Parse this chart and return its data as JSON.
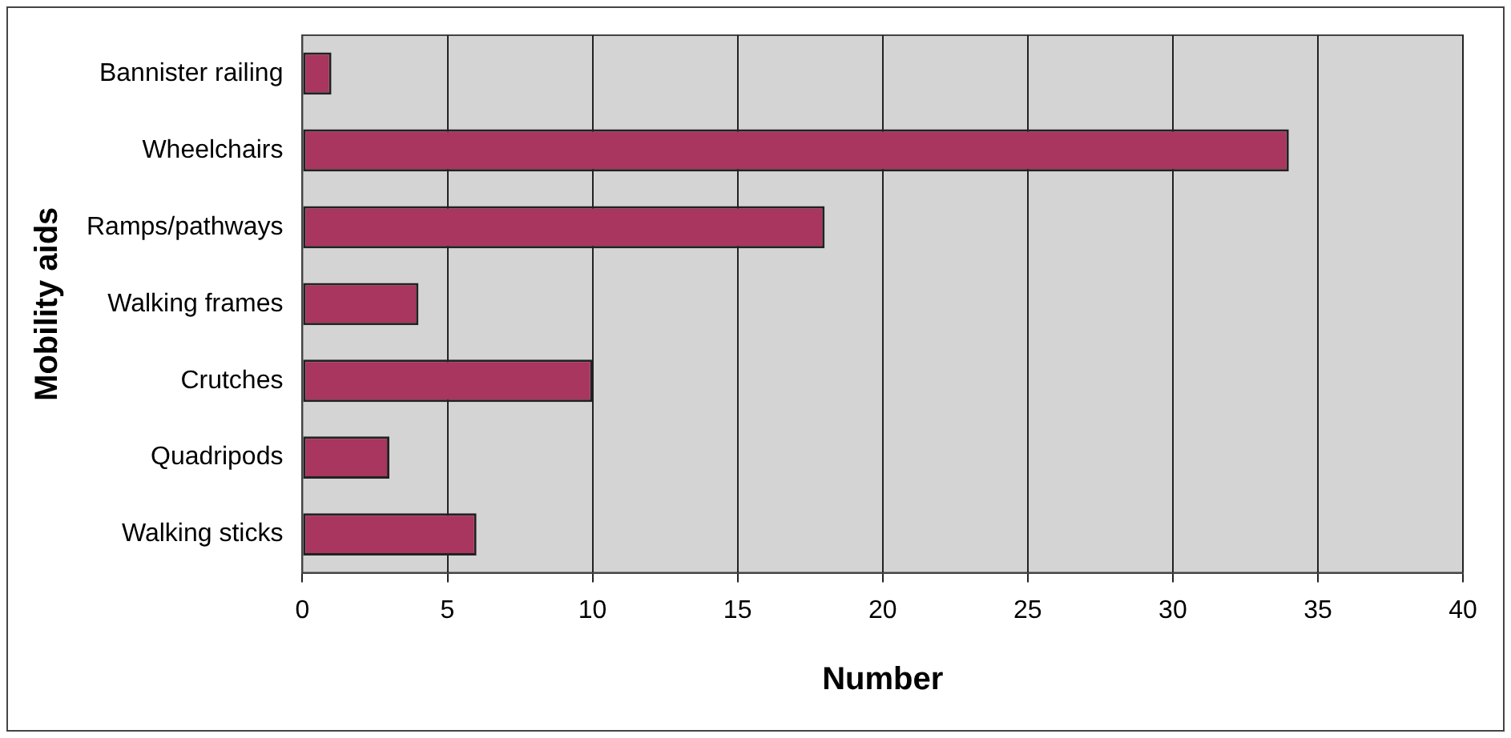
{
  "chart_data": {
    "type": "bar",
    "orientation": "horizontal",
    "categories": [
      "Bannister railing",
      "Wheelchairs",
      "Ramps/pathways",
      "Walking frames",
      "Crutches",
      "Quadripods",
      "Walking sticks"
    ],
    "values": [
      1,
      34,
      18,
      4,
      10,
      3,
      6
    ],
    "color": "#a8365f",
    "xlabel": "Number",
    "ylabel": "Mobility aids",
    "xlim": [
      0,
      40
    ],
    "xticks": [
      0,
      5,
      10,
      15,
      20,
      25,
      30,
      35,
      40
    ],
    "grid": "x"
  }
}
